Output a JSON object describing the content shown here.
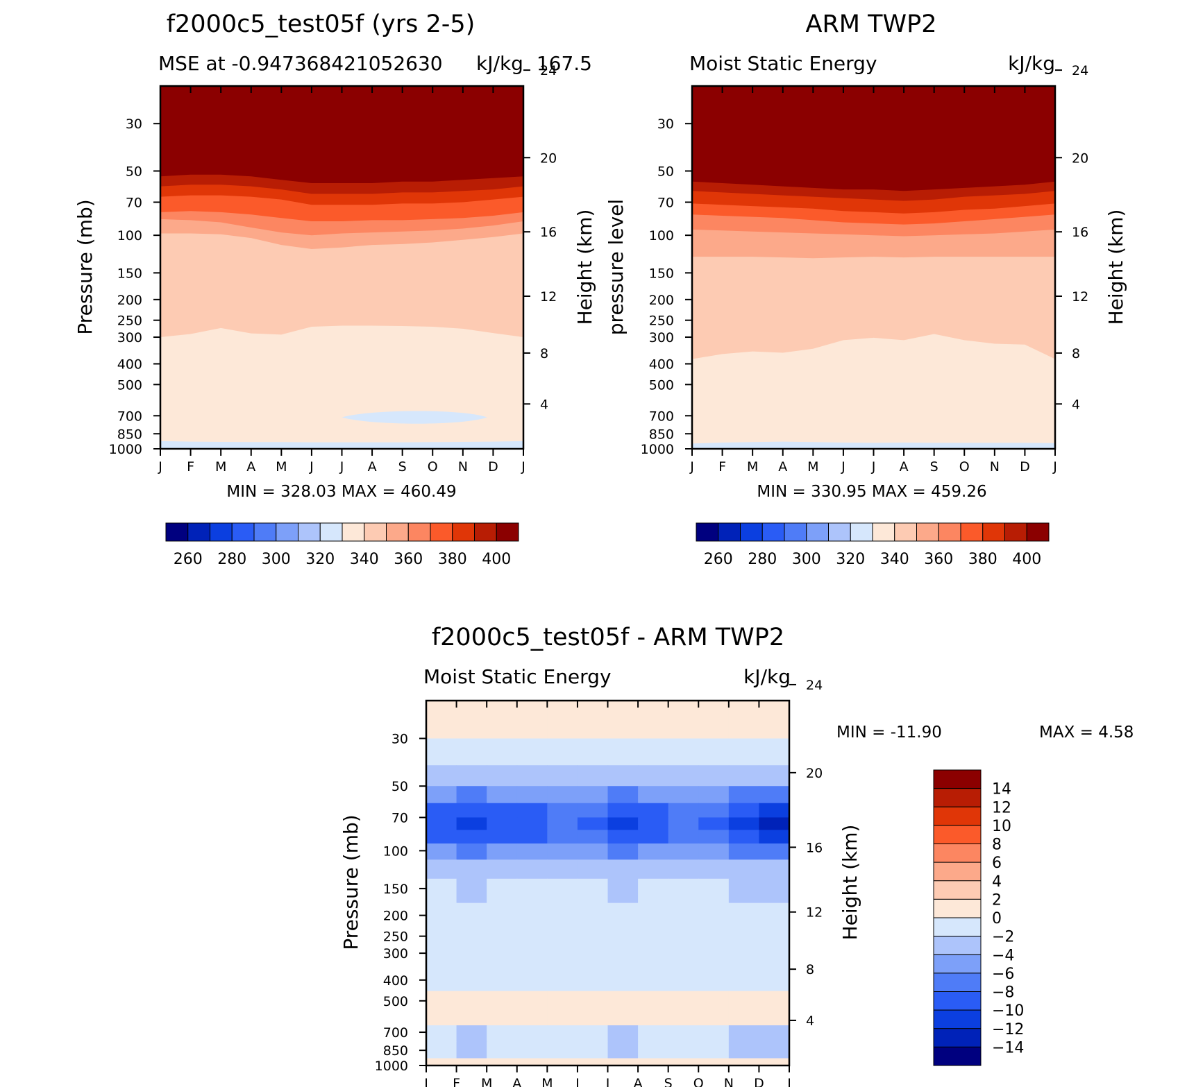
{
  "figure": {
    "type": "contour",
    "months": [
      "J",
      "F",
      "M",
      "A",
      "M",
      "J",
      "J",
      "A",
      "S",
      "O",
      "N",
      "D",
      "J"
    ],
    "pressure_ticks": [
      30,
      50,
      70,
      100,
      150,
      200,
      250,
      300,
      400,
      500,
      700,
      850,
      1000
    ],
    "height_ticks": [
      4,
      8,
      12,
      16,
      20,
      24
    ],
    "ylabel": "Pressure (mb)",
    "ylabel_alt": "pressure level",
    "y2label": "Height (km)",
    "colors": {
      "warm_scale": [
        "#00007f",
        "#0022b8",
        "#0b3fe0",
        "#2a5cf5",
        "#4f7cf7",
        "#7da0f9",
        "#adc4fb",
        "#d6e7fc",
        "#fde8d8",
        "#fdcbb3",
        "#fca98a",
        "#fc8661",
        "#fb5a2a",
        "#e03607",
        "#b81d04",
        "#8b0000"
      ],
      "diff_scale": [
        "#00007f",
        "#0022b8",
        "#0b3fe0",
        "#2a5cf5",
        "#4f7cf7",
        "#7da0f9",
        "#adc4fb",
        "#d6e7fc",
        "#fde8d8",
        "#fdcbb3",
        "#fca98a",
        "#fc8661",
        "#fb5a2a",
        "#e03607",
        "#b81d04",
        "#8b0000"
      ]
    }
  },
  "chart_data": [
    {
      "type": "heatmap",
      "title": "f2000c5_test05f (yrs 2-5)",
      "left_string": "MSE at -0.947368421052630",
      "center_string": "kJ/kg",
      "right_string": "167.5",
      "xlabel": "",
      "ylabel": "Pressure (mb)",
      "y2label": "Height (km)",
      "x": [
        "J",
        "F",
        "M",
        "A",
        "M",
        "J",
        "J",
        "A",
        "S",
        "O",
        "N",
        "D",
        "J"
      ],
      "y_range_mb": [
        20,
        1000
      ],
      "contour_levels": [
        260,
        270,
        280,
        290,
        300,
        310,
        320,
        330,
        340,
        350,
        360,
        370,
        380,
        390,
        400
      ],
      "colorbar_labels": [
        "260",
        "280",
        "300",
        "320",
        "340",
        "360",
        "380",
        "400"
      ],
      "min": 328.03,
      "max": 460.49,
      "stats_text": "MIN = 328.03 MAX = 460.49",
      "contours": [
        {
          "level": 400,
          "pressure_mb": [
            53,
            52,
            52,
            53,
            55,
            57,
            57,
            57,
            56,
            56,
            55,
            54,
            53
          ]
        },
        {
          "level": 390,
          "pressure_mb": [
            59,
            58,
            58,
            59,
            61,
            64,
            64,
            64,
            63,
            63,
            62,
            61,
            59
          ]
        },
        {
          "level": 380,
          "pressure_mb": [
            66,
            65,
            65,
            66,
            68,
            72,
            72,
            72,
            71,
            71,
            70,
            68,
            66
          ]
        },
        {
          "level": 370,
          "pressure_mb": [
            78,
            77,
            78,
            80,
            83,
            86,
            86,
            85,
            85,
            84,
            83,
            81,
            78
          ]
        },
        {
          "level": 360,
          "pressure_mb": [
            84,
            85,
            87,
            92,
            97,
            100,
            98,
            97,
            96,
            95,
            93,
            90,
            86
          ]
        },
        {
          "level": 350,
          "pressure_mb": [
            98,
            98,
            99,
            103,
            111,
            116,
            114,
            111,
            110,
            108,
            105,
            102,
            98
          ]
        },
        {
          "level": 340,
          "pressure_mb": [
            300,
            290,
            272,
            288,
            292,
            268,
            265,
            265,
            266,
            268,
            274,
            287,
            300
          ]
        },
        {
          "level": 330,
          "pressure_mb": [
            920,
            925,
            928,
            930,
            930,
            932,
            932,
            932,
            932,
            930,
            928,
            925,
            920
          ]
        }
      ],
      "minimum_region": {
        "month_span": [
          "J",
          "N"
        ],
        "pressure_mb": [
          650,
          780
        ],
        "below": 330
      }
    },
    {
      "type": "heatmap",
      "title": "ARM TWP2",
      "left_string": "Moist Static Energy",
      "right_string": "kJ/kg",
      "ylabel": "pressure level",
      "y2label": "Height (km)",
      "x": [
        "J",
        "F",
        "M",
        "A",
        "M",
        "J",
        "J",
        "A",
        "S",
        "O",
        "N",
        "D",
        "J"
      ],
      "y_range_mb": [
        20,
        1000
      ],
      "contour_levels": [
        260,
        270,
        280,
        290,
        300,
        310,
        320,
        330,
        340,
        350,
        360,
        370,
        380,
        390,
        400
      ],
      "colorbar_labels": [
        "260",
        "280",
        "300",
        "320",
        "340",
        "360",
        "380",
        "400"
      ],
      "min": 330.95,
      "max": 459.26,
      "stats_text": "MIN = 330.95 MAX = 459.26",
      "contours": [
        {
          "level": 400,
          "pressure_mb": [
            56,
            57,
            58,
            59,
            60,
            61,
            61,
            62,
            61,
            60,
            59,
            58,
            56
          ]
        },
        {
          "level": 390,
          "pressure_mb": [
            62,
            63,
            64,
            65,
            66,
            67,
            68,
            69,
            68,
            66,
            65,
            64,
            62
          ]
        },
        {
          "level": 380,
          "pressure_mb": [
            71,
            72,
            73,
            74,
            75,
            77,
            78,
            79,
            78,
            76,
            75,
            73,
            71
          ]
        },
        {
          "level": 370,
          "pressure_mb": [
            80,
            81,
            82,
            83,
            85,
            87,
            88,
            89,
            88,
            86,
            84,
            82,
            80
          ]
        },
        {
          "level": 360,
          "pressure_mb": [
            94,
            95,
            96,
            97,
            98,
            99,
            100,
            101,
            100,
            99,
            98,
            96,
            94
          ]
        },
        {
          "level": 350,
          "pressure_mb": [
            126,
            126,
            126,
            127,
            128,
            127,
            126,
            127,
            126,
            126,
            126,
            126,
            126
          ]
        },
        {
          "level": 340,
          "pressure_mb": [
            380,
            360,
            350,
            355,
            340,
            310,
            302,
            310,
            290,
            310,
            322,
            325,
            380
          ]
        },
        {
          "level": 330,
          "pressure_mb": [
            945,
            935,
            930,
            925,
            930,
            935,
            938,
            935,
            938,
            938,
            938,
            938,
            940
          ]
        }
      ]
    },
    {
      "type": "heatmap",
      "title": "f2000c5_test05f - ARM TWP2",
      "left_string": "Moist Static Energy",
      "right_string": "kJ/kg",
      "ylabel": "Pressure (mb)",
      "y2label": "Height (km)",
      "x": [
        "J",
        "F",
        "M",
        "A",
        "M",
        "J",
        "J",
        "A",
        "S",
        "O",
        "N",
        "D",
        "J"
      ],
      "y_range_mb": [
        20,
        1000
      ],
      "contour_levels": [
        -14,
        -12,
        -10,
        -8,
        -6,
        -4,
        -2,
        0,
        2,
        4,
        6,
        8,
        10,
        12,
        14
      ],
      "colorbar_labels": [
        "14",
        "12",
        "10",
        "8",
        "6",
        "4",
        "2",
        "0",
        "-2",
        "-4",
        "-6",
        "-8",
        "-10",
        "-12",
        "-14"
      ],
      "min": -11.9,
      "max": 4.58,
      "stats_text_min": "MIN = -11.90",
      "stats_text_max": "MAX = 4.58",
      "profile_mb": [
        25,
        35,
        45,
        55,
        65,
        75,
        85,
        100,
        120,
        150,
        200,
        300,
        400,
        500,
        600,
        700,
        850,
        1000
      ],
      "profile_diff": [
        1,
        -1,
        -3,
        -6,
        -9,
        -10.5,
        -9,
        -6,
        -3,
        -2,
        -1,
        -1,
        -1,
        0.5,
        0,
        -2,
        -2,
        0
      ]
    }
  ]
}
